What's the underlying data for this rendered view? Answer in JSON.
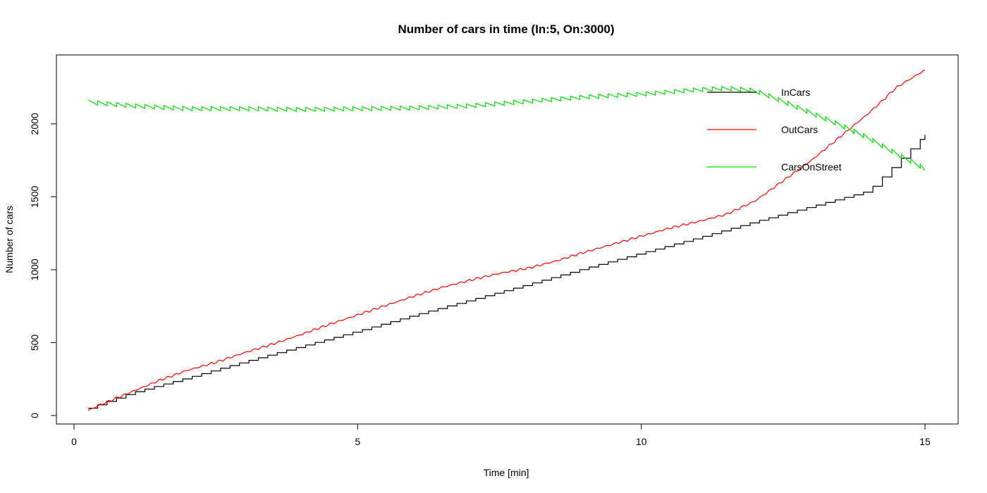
{
  "chart_data": {
    "type": "line",
    "title": "Number of cars in time (In:5, On:3000)",
    "xlabel": "Time [min]",
    "ylabel": "Number of cars",
    "xlim": [
      0,
      15
    ],
    "ylim": [
      0,
      2400
    ],
    "x_ticks": [
      0,
      5,
      10,
      15
    ],
    "y_ticks": [
      0,
      500,
      1000,
      1500,
      2000
    ],
    "grid": false,
    "legend_position": "top-right",
    "series": [
      {
        "name": "InCars",
        "color": "#000000",
        "style": "step",
        "x": [
          0.25,
          1,
          2,
          3,
          4,
          5,
          6,
          7,
          8,
          9,
          10,
          11,
          12,
          13,
          14,
          15
        ],
        "y": [
          50,
          155,
          260,
          370,
          475,
          580,
          690,
          795,
          900,
          1010,
          1115,
          1220,
          1330,
          1435,
          1540,
          1925
        ]
      },
      {
        "name": "OutCars",
        "color": "#ff0000",
        "style": "line",
        "x": [
          0.25,
          0.5,
          1,
          1.5,
          2,
          2.5,
          3,
          3.5,
          4,
          4.5,
          5,
          5.5,
          6,
          6.5,
          7,
          7.5,
          8,
          8.5,
          9,
          9.5,
          10,
          10.5,
          11,
          11.5,
          12,
          12.5,
          13,
          13.5,
          14,
          14.5,
          15
        ],
        "y": [
          35,
          80,
          160,
          240,
          310,
          365,
          430,
          490,
          555,
          625,
          690,
          755,
          820,
          880,
          930,
          975,
          1010,
          1060,
          1120,
          1175,
          1230,
          1285,
          1330,
          1380,
          1470,
          1610,
          1750,
          1910,
          2070,
          2250,
          2370
        ]
      },
      {
        "name": "CarsOnStreet",
        "color": "#00dd00",
        "style": "sawtooth",
        "x": [
          0.25,
          1,
          2,
          3,
          4,
          5,
          6,
          7,
          8,
          9,
          10,
          10.5,
          11,
          11.5,
          12,
          12.5,
          13,
          13.5,
          14,
          14.5,
          15
        ],
        "y": [
          2135,
          2110,
          2090,
          2090,
          2085,
          2090,
          2095,
          2110,
          2140,
          2170,
          2190,
          2205,
          2220,
          2230,
          2215,
          2140,
          2060,
          1980,
          1890,
          1780,
          1680
        ]
      }
    ]
  }
}
